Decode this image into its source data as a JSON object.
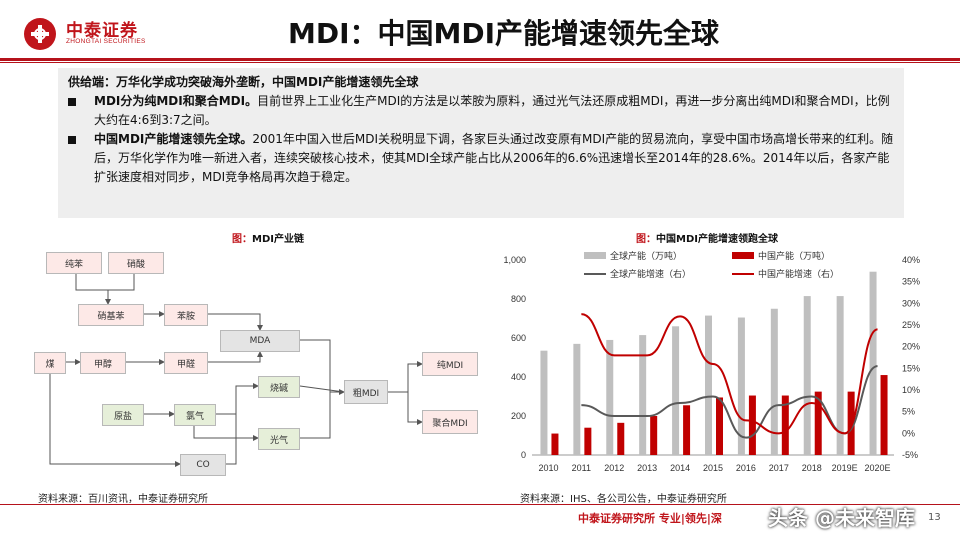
{
  "logo": {
    "name": "中泰证券",
    "sub": "ZHONGTAI SECURITIES"
  },
  "title": "MDI：中国MDI产能增速领先全球",
  "textbox": {
    "heading": "供给端：万华化学成功突破海外垄断，中国MDI产能增速领先全球",
    "bullets": [
      {
        "bold": "MDI分为纯MDI和聚合MDI。",
        "text": "目前世界上工业化生产MDI的方法是以苯胺为原料，通过光气法还原成粗MDI，再进一步分离出纯MDI和聚合MDI，比例大约在4:6到3:7之间。"
      },
      {
        "bold": "中国MDI产能增速领先全球。",
        "text": "2001年中国入世后MDI关税明显下调，各家巨头通过改变原有MDI产能的贸易流向，享受中国市场高增长带来的红利。随后，万华化学作为唯一新进入者，连续突破核心技术，使其MDI全球产能占比从2006年的6.6%迅速增长至2014年的28.6%。2014年以后，各家产能扩张速度相对同步，MDI竞争格局再次趋于稳定。"
      }
    ]
  },
  "flow": {
    "caption_prefix": "图：",
    "caption": "MDI产业链",
    "nodes": {
      "benzene": "纯苯",
      "nitric": "硝酸",
      "nitrobenzene": "硝基苯",
      "aniline": "苯胺",
      "mda": "MDA",
      "coal": "煤",
      "methanol": "甲醇",
      "formaldehyde": "甲醛",
      "caustic": "烧碱",
      "crude": "粗MDI",
      "pure": "纯MDI",
      "polymer": "聚合MDI",
      "salt": "原盐",
      "chlorine": "氯气",
      "phosgene": "光气",
      "co": "CO"
    },
    "source": "资料来源：百川资讯，中泰证券研究所"
  },
  "chart_data": {
    "type": "bar",
    "title": "中国MDI产能增速领跑全球",
    "caption_prefix": "图：",
    "categories": [
      "2010",
      "2011",
      "2012",
      "2013",
      "2014",
      "2015",
      "2016",
      "2017",
      "2018",
      "2019E",
      "2020E"
    ],
    "series": [
      {
        "name": "全球产能（万吨）",
        "kind": "bar",
        "axis": "left",
        "color": "#bfbfbf",
        "values": [
          535,
          570,
          590,
          615,
          660,
          715,
          705,
          750,
          815,
          815,
          940
        ]
      },
      {
        "name": "中国产能（万吨）",
        "kind": "bar",
        "axis": "left",
        "color": "#c00000",
        "values": [
          110,
          140,
          165,
          200,
          255,
          295,
          305,
          305,
          325,
          325,
          410
        ]
      },
      {
        "name": "全球产能增速（右）",
        "kind": "line",
        "axis": "right",
        "color": "#595959",
        "values": [
          null,
          6.5,
          4.0,
          4.0,
          7.0,
          8.5,
          -1.0,
          6.5,
          8.5,
          0.0,
          15.5
        ]
      },
      {
        "name": "中国产能增速（右）",
        "kind": "line",
        "axis": "right",
        "color": "#c00000",
        "values": [
          null,
          27.5,
          18.0,
          18.0,
          27.0,
          16.0,
          3.0,
          0.0,
          7.0,
          0.0,
          24.0
        ]
      }
    ],
    "y_left": {
      "min": 0,
      "max": 1000,
      "ticks": [
        "0",
        "200",
        "400",
        "600",
        "800",
        "1,000"
      ]
    },
    "y_right": {
      "min": -5,
      "max": 40,
      "ticks": [
        "-5%",
        "0%",
        "5%",
        "10%",
        "15%",
        "20%",
        "25%",
        "30%",
        "35%",
        "40%"
      ]
    },
    "legend_position": "top",
    "source": "资料来源：IHS、各公司公告，中泰证券研究所"
  },
  "footer": {
    "text": "中泰证券研究所 专业|领先|深",
    "watermark": "头条 @未来智库",
    "page": "13"
  },
  "colors": {
    "brand": "#c0151b"
  }
}
